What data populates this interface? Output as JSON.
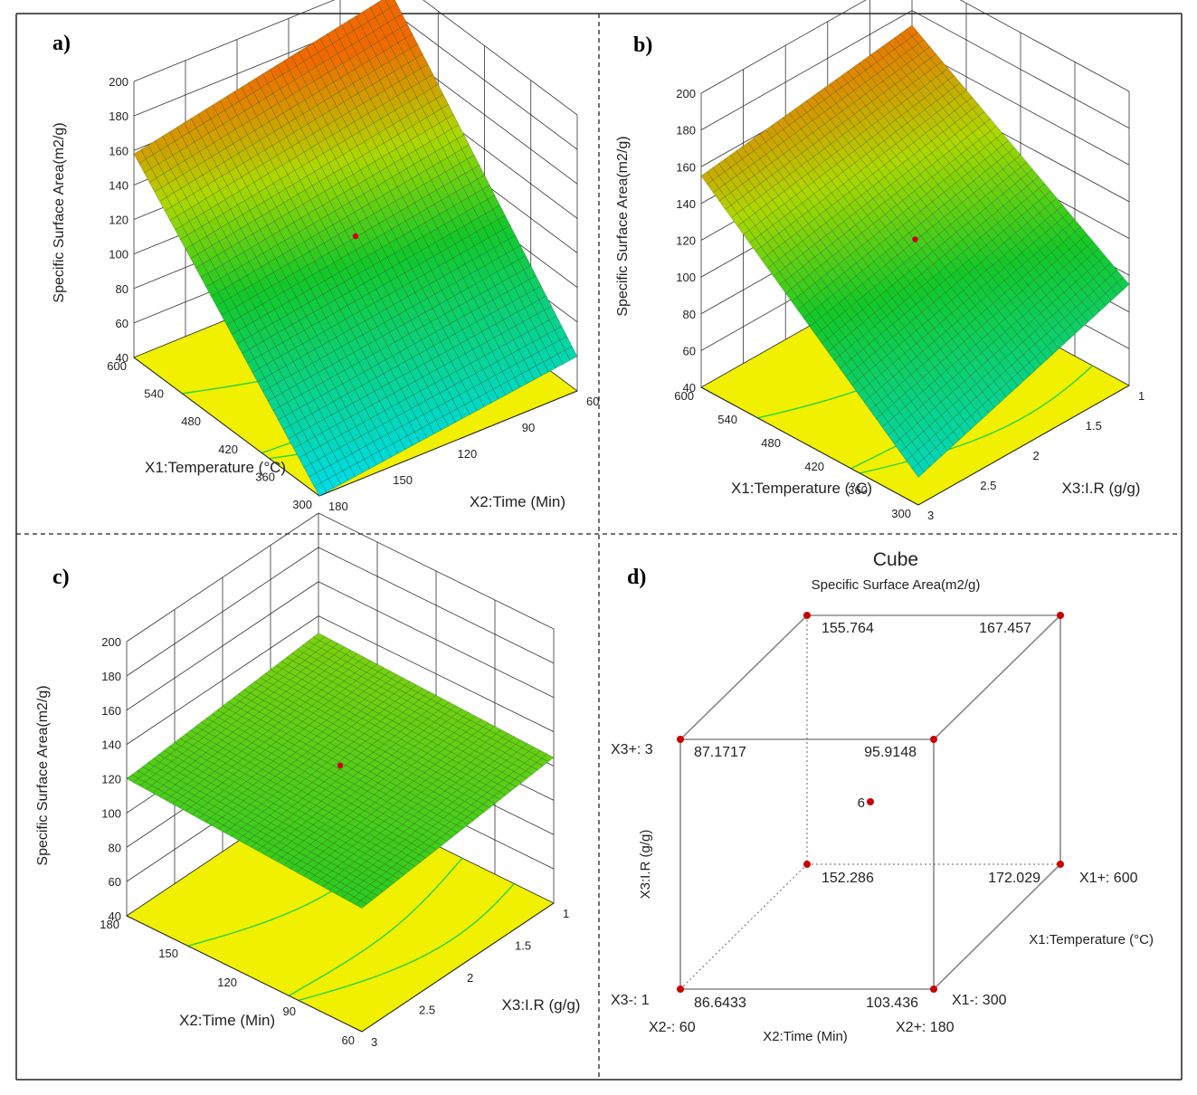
{
  "figure": {
    "colors": {
      "frame": "#222222",
      "grid": "#333333",
      "floor": "#f0f000",
      "contour": "#2bd23b",
      "point": "#cc0000",
      "mesh": "#1a3a1a"
    }
  },
  "chart_data": [
    {
      "panel": "a)",
      "type": "surface3d",
      "zlabel": "Specific Surface Area(m2/g)",
      "zticks": [
        40,
        60,
        80,
        100,
        120,
        140,
        160,
        180,
        200
      ],
      "xlabel": "X1:Temperature (°C)",
      "xticks": [
        300,
        360,
        420,
        480,
        540,
        600
      ],
      "ylabel": "X2:Time (Min)",
      "yticks": [
        180,
        150,
        120,
        90,
        60
      ],
      "corner_values": {
        "x_high_y_low": 158,
        "x_high_y_high": 190,
        "x_low_y_low": 40,
        "x_low_y_high": 60
      },
      "center_point": 120
    },
    {
      "panel": "b)",
      "type": "surface3d",
      "zlabel": "Specific Surface Area(m2/g)",
      "zticks": [
        40,
        60,
        80,
        100,
        120,
        140,
        160,
        180,
        200
      ],
      "xlabel": "X1:Temperature (°C)",
      "xticks": [
        300,
        360,
        420,
        480,
        540,
        600
      ],
      "ylabel": "X3:I.R (g/g)",
      "yticks": [
        3,
        2.5,
        2,
        1.5,
        1
      ],
      "corner_values": {
        "x_high_y_low": 155,
        "x_high_y_high": 172,
        "x_low_y_low": 55,
        "x_low_y_high": 95
      },
      "center_point": 120
    },
    {
      "panel": "c)",
      "type": "surface3d",
      "zlabel": "Specific Surface Area(m2/g)",
      "zticks": [
        40,
        60,
        80,
        100,
        120,
        140,
        160,
        180,
        200
      ],
      "xlabel": "X2:Time (Min)",
      "xticks": [
        60,
        90,
        120,
        150,
        180
      ],
      "ylabel": "X3:I.R (g/g)",
      "yticks": [
        3,
        2.5,
        2,
        1.5,
        1
      ],
      "corner_values": {
        "x_high_y_low": 120,
        "x_high_y_high": 130,
        "x_low_y_low": 112,
        "x_low_y_high": 125
      },
      "center_point": 124
    },
    {
      "panel": "d)",
      "type": "cube",
      "title": "Cube",
      "subtitle": "Specific Surface Area(m2/g)",
      "values": {
        "back_top_left": "155.764",
        "back_top_right": "167.457",
        "front_top_left": "87.1717",
        "front_top_right": "95.9148",
        "back_bottom_left": "152.286",
        "back_bottom_right": "172.029",
        "front_bottom_left": "86.6433",
        "front_bottom_right": "103.436",
        "center": "6"
      },
      "labels": {
        "x3_high": "X3+: 3",
        "x3_low": "X3-: 1",
        "x2_low": "X2-: 60",
        "x2_high": "X2+: 180",
        "x1_high": "X1+: 600",
        "x1_low": "X1-: 300",
        "x3_axis": "X3:I.R (g/g)",
        "x2_axis": "X2:Time (Min)",
        "x1_axis": "X1:Temperature (°C)"
      }
    }
  ]
}
